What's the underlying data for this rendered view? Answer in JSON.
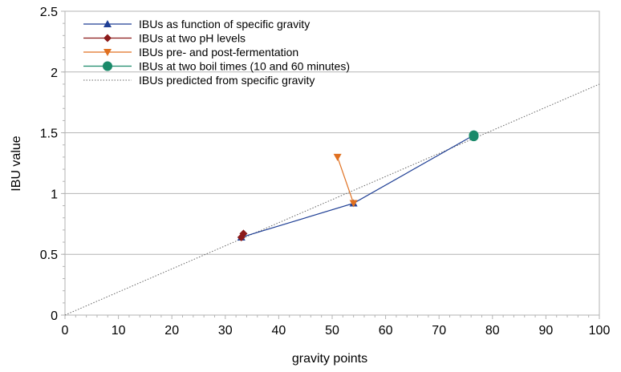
{
  "chart_data": {
    "type": "line",
    "xlabel": "gravity points",
    "ylabel": "IBU value",
    "xlim": [
      0,
      100
    ],
    "ylim": [
      0,
      2.5
    ],
    "x_ticks": [
      "0",
      "10",
      "20",
      "30",
      "40",
      "50",
      "60",
      "70",
      "80",
      "90",
      "100"
    ],
    "y_ticks": [
      "0",
      "0.5",
      "1",
      "1.5",
      "2",
      "2.5"
    ],
    "grid": "horizontal",
    "legend_position": "top-left",
    "series": [
      {
        "name": "IBUs as function of specific gravity",
        "color": "#1f3f95",
        "marker": "triangle",
        "x": [
          33,
          54,
          76.5
        ],
        "y": [
          0.64,
          0.92,
          1.48
        ]
      },
      {
        "name": "IBUs at two pH levels",
        "color": "#8b1a1a",
        "marker": "diamond",
        "x": [
          33,
          33.4
        ],
        "y": [
          0.64,
          0.67
        ]
      },
      {
        "name": "IBUs pre- and post-fermentation",
        "color": "#e07020",
        "marker": "triangle-down",
        "x": [
          51,
          54
        ],
        "y": [
          1.3,
          0.92
        ]
      },
      {
        "name": "IBUs at two boil times (10 and 60 minutes)",
        "color": "#1a8a6a",
        "marker": "circle",
        "x": [
          76.5,
          76.5
        ],
        "y": [
          1.47,
          1.48
        ]
      },
      {
        "name": "IBUs predicted from specific gravity",
        "color": "#666666",
        "marker": "none",
        "style": "dotted",
        "x": [
          0,
          100
        ],
        "y": [
          0,
          1.9
        ]
      }
    ]
  }
}
